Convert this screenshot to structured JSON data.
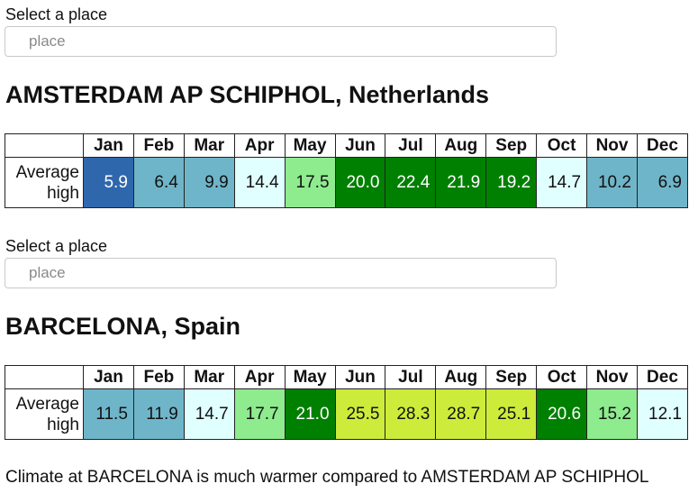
{
  "sections": [
    {
      "select_label": "Select a place",
      "input_placeholder": "place",
      "input_value": "",
      "title": "AMSTERDAM AP SCHIPHOL, Netherlands",
      "row_label_line1": "Average",
      "row_label_line2": "high",
      "months": [
        "Jan",
        "Feb",
        "Mar",
        "Apr",
        "May",
        "Jun",
        "Jul",
        "Aug",
        "Sep",
        "Oct",
        "Nov",
        "Dec"
      ],
      "values": [
        "5.9",
        "6.4",
        "9.9",
        "14.4",
        "17.5",
        "20.0",
        "22.4",
        "21.9",
        "19.2",
        "14.7",
        "10.2",
        "6.9"
      ],
      "cell_colors": [
        "#2f67ad",
        "#6fb5c9",
        "#6fb5c9",
        "#e0ffff",
        "#8eeb8e",
        "#008000",
        "#008000",
        "#008000",
        "#008000",
        "#e0ffff",
        "#6fb5c9",
        "#6fb5c9"
      ],
      "text_colors": [
        "#ffffff",
        "#111111",
        "#111111",
        "#111111",
        "#111111",
        "#ffffff",
        "#ffffff",
        "#ffffff",
        "#ffffff",
        "#111111",
        "#111111",
        "#111111"
      ]
    },
    {
      "select_label": "Select a place",
      "input_placeholder": "place",
      "input_value": "",
      "title": "BARCELONA, Spain",
      "row_label_line1": "Average",
      "row_label_line2": "high",
      "months": [
        "Jan",
        "Feb",
        "Mar",
        "Apr",
        "May",
        "Jun",
        "Jul",
        "Aug",
        "Sep",
        "Oct",
        "Nov",
        "Dec"
      ],
      "values": [
        "11.5",
        "11.9",
        "14.7",
        "17.7",
        "21.0",
        "25.5",
        "28.3",
        "28.7",
        "25.1",
        "20.6",
        "15.2",
        "12.1"
      ],
      "cell_colors": [
        "#6fb5c9",
        "#6fb5c9",
        "#e0ffff",
        "#8eeb8e",
        "#008000",
        "#cdeb3a",
        "#cdeb3a",
        "#cdeb3a",
        "#cdeb3a",
        "#008000",
        "#8eeb8e",
        "#e0ffff"
      ],
      "text_colors": [
        "#111111",
        "#111111",
        "#111111",
        "#111111",
        "#ffffff",
        "#111111",
        "#111111",
        "#111111",
        "#111111",
        "#ffffff",
        "#111111",
        "#111111"
      ]
    }
  ],
  "summary": "Climate at BARCELONA is much warmer compared to AMSTERDAM AP SCHIPHOL"
}
